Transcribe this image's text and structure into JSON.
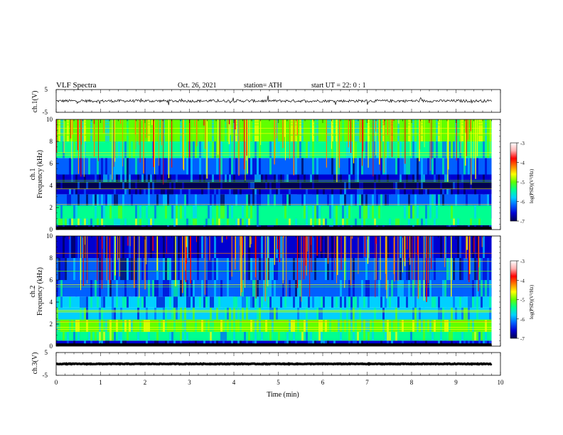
{
  "header": {
    "title": "VLF  Spectra",
    "date": "Oct. 26, 2021",
    "station": "station= ATH",
    "start": "start  UT  =    22: 0   : 1"
  },
  "axes": {
    "xlabel": "Time  (min)",
    "ch1_label": "ch.1(V)",
    "ch2_label": "ch.1",
    "ch2_freq_label": "Frequency  (kHz)",
    "ch3_label": "ch.2",
    "ch3_freq_label": "Frequency  (kHz)",
    "ch4_label": "ch.3(V)",
    "colorbar_label": "log(PSD)(V²/Hz)"
  },
  "colors": {
    "scale": [
      "#000050",
      "#0000d0",
      "#0060ff",
      "#00d0ff",
      "#00ff90",
      "#60ff00",
      "#ffff00",
      "#ff8000",
      "#ff0000",
      "#ffb0b0",
      "#ffffff"
    ]
  },
  "chart_data": [
    {
      "type": "line",
      "name": "ch.1(V)",
      "ylim": [
        -5,
        5
      ],
      "yticks": [
        5,
        -5
      ],
      "xlim": [
        0,
        10
      ],
      "level": 0,
      "amplitude": 0.6
    },
    {
      "type": "heatmap",
      "name": "ch.1",
      "ylabel": "Frequency  (kHz)",
      "xlim": [
        0,
        10
      ],
      "ylim": [
        0,
        10
      ],
      "data_xmax": 9.8,
      "xticks": [
        0,
        1,
        2,
        3,
        4,
        5,
        6,
        7,
        8,
        9,
        10
      ],
      "yticks": [
        0,
        2,
        4,
        6,
        8,
        10
      ],
      "colorbar": {
        "ticks": [
          -3,
          -4,
          -5,
          -6,
          -7
        ],
        "range": [
          -7,
          -3
        ]
      },
      "bands": [
        {
          "f0": 0,
          "f1": 0.4,
          "level": -7.0
        },
        {
          "f0": 0.4,
          "f1": 1.0,
          "level": -5.3
        },
        {
          "f0": 1.0,
          "f1": 2.2,
          "level": -5.6
        },
        {
          "f0": 2.2,
          "f1": 3.2,
          "level": -6.3
        },
        {
          "f0": 3.2,
          "f1": 3.7,
          "level": -6.7
        },
        {
          "f0": 3.7,
          "f1": 4.3,
          "level": -6.9
        },
        {
          "f0": 4.3,
          "f1": 5.0,
          "level": -6.5
        },
        {
          "f0": 5.0,
          "f1": 6.5,
          "level": -6.1
        },
        {
          "f0": 6.5,
          "f1": 8.0,
          "level": -5.6
        },
        {
          "f0": 8.0,
          "f1": 10.0,
          "level": -5.2
        }
      ]
    },
    {
      "type": "heatmap",
      "name": "ch.2",
      "ylabel": "Frequency  (kHz)",
      "xlim": [
        0,
        10
      ],
      "ylim": [
        0,
        10
      ],
      "data_xmax": 9.8,
      "xticks": [
        0,
        1,
        2,
        3,
        4,
        5,
        6,
        7,
        8,
        9,
        10
      ],
      "yticks": [
        0,
        2,
        4,
        6,
        8,
        10
      ],
      "colorbar": {
        "ticks": [
          -3,
          -4,
          -5,
          -6,
          -7
        ],
        "range": [
          -7,
          -3
        ]
      },
      "bands": [
        {
          "f0": 0,
          "f1": 0.5,
          "level": -6.4
        },
        {
          "f0": 0.5,
          "f1": 1.3,
          "level": -5.4
        },
        {
          "f0": 1.3,
          "f1": 2.4,
          "level": -5.2
        },
        {
          "f0": 2.4,
          "f1": 3.5,
          "level": -5.7
        },
        {
          "f0": 3.5,
          "f1": 4.5,
          "level": -6.0
        },
        {
          "f0": 4.5,
          "f1": 6.0,
          "level": -6.1
        },
        {
          "f0": 6.0,
          "f1": 8.0,
          "level": -6.3
        },
        {
          "f0": 8.0,
          "f1": 10.0,
          "level": -6.5
        }
      ]
    },
    {
      "type": "line",
      "name": "ch.3(V)",
      "ylim": [
        -5,
        5
      ],
      "yticks": [
        5,
        -5
      ],
      "xlim": [
        0,
        10
      ],
      "level": 0,
      "amplitude": 0.15
    }
  ]
}
